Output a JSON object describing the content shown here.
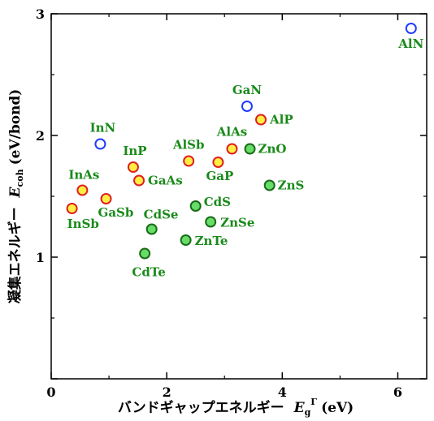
{
  "colors": {
    "label": "#1a8a1a",
    "group_IV_III_V_nitride_fill": "#ffffff",
    "nitride_stroke": "#1e3cff",
    "III_V_fill": "#ffee44",
    "III_V_stroke": "#e02020",
    "II_VI_fill": "#66dd66",
    "II_VI_stroke": "#1a6a1a"
  },
  "chart_data": {
    "type": "scatter",
    "x_axis": {
      "label_text": "バンドギャップエネルギー",
      "label_symbol": "E",
      "label_sub": "g",
      "label_sup": "Γ",
      "label_unit": "(eV)",
      "range": [
        0,
        6.5
      ],
      "ticks": [
        0,
        2,
        4,
        6
      ],
      "tick_labels": [
        "0",
        "2",
        "4",
        "6"
      ]
    },
    "y_axis": {
      "label_text": "凝集エネルギー",
      "label_symbol": "E",
      "label_sub": "coh",
      "label_unit": "(eV/bond)",
      "range": [
        0,
        3
      ],
      "ticks": [
        0,
        1,
        2,
        3
      ],
      "tick_labels": [
        "",
        "1",
        "2",
        "3"
      ]
    },
    "series": [
      {
        "group": "nitride",
        "points": [
          {
            "label": "AlN",
            "x": 6.23,
            "y": 2.88
          },
          {
            "label": "GaN",
            "x": 3.39,
            "y": 2.24
          },
          {
            "label": "InN",
            "x": 0.85,
            "y": 1.93
          }
        ]
      },
      {
        "group": "III-V",
        "points": [
          {
            "label": "AlP",
            "x": 3.63,
            "y": 2.13
          },
          {
            "label": "AlAs",
            "x": 3.13,
            "y": 1.89
          },
          {
            "label": "GaP",
            "x": 2.89,
            "y": 1.78
          },
          {
            "label": "AlSb",
            "x": 2.38,
            "y": 1.79
          },
          {
            "label": "InP",
            "x": 1.42,
            "y": 1.74
          },
          {
            "label": "GaAs",
            "x": 1.52,
            "y": 1.63
          },
          {
            "label": "InAs",
            "x": 0.54,
            "y": 1.55
          },
          {
            "label": "GaSb",
            "x": 0.95,
            "y": 1.48
          },
          {
            "label": "InSb",
            "x": 0.36,
            "y": 1.4
          }
        ]
      },
      {
        "group": "II-VI",
        "points": [
          {
            "label": "ZnO",
            "x": 3.44,
            "y": 1.89
          },
          {
            "label": "ZnS",
            "x": 3.78,
            "y": 1.59
          },
          {
            "label": "CdS",
            "x": 2.5,
            "y": 1.42
          },
          {
            "label": "ZnSe",
            "x": 2.76,
            "y": 1.29
          },
          {
            "label": "CdSe",
            "x": 1.74,
            "y": 1.23
          },
          {
            "label": "ZnTe",
            "x": 2.33,
            "y": 1.14
          },
          {
            "label": "CdTe",
            "x": 1.62,
            "y": 1.03
          }
        ]
      }
    ]
  }
}
